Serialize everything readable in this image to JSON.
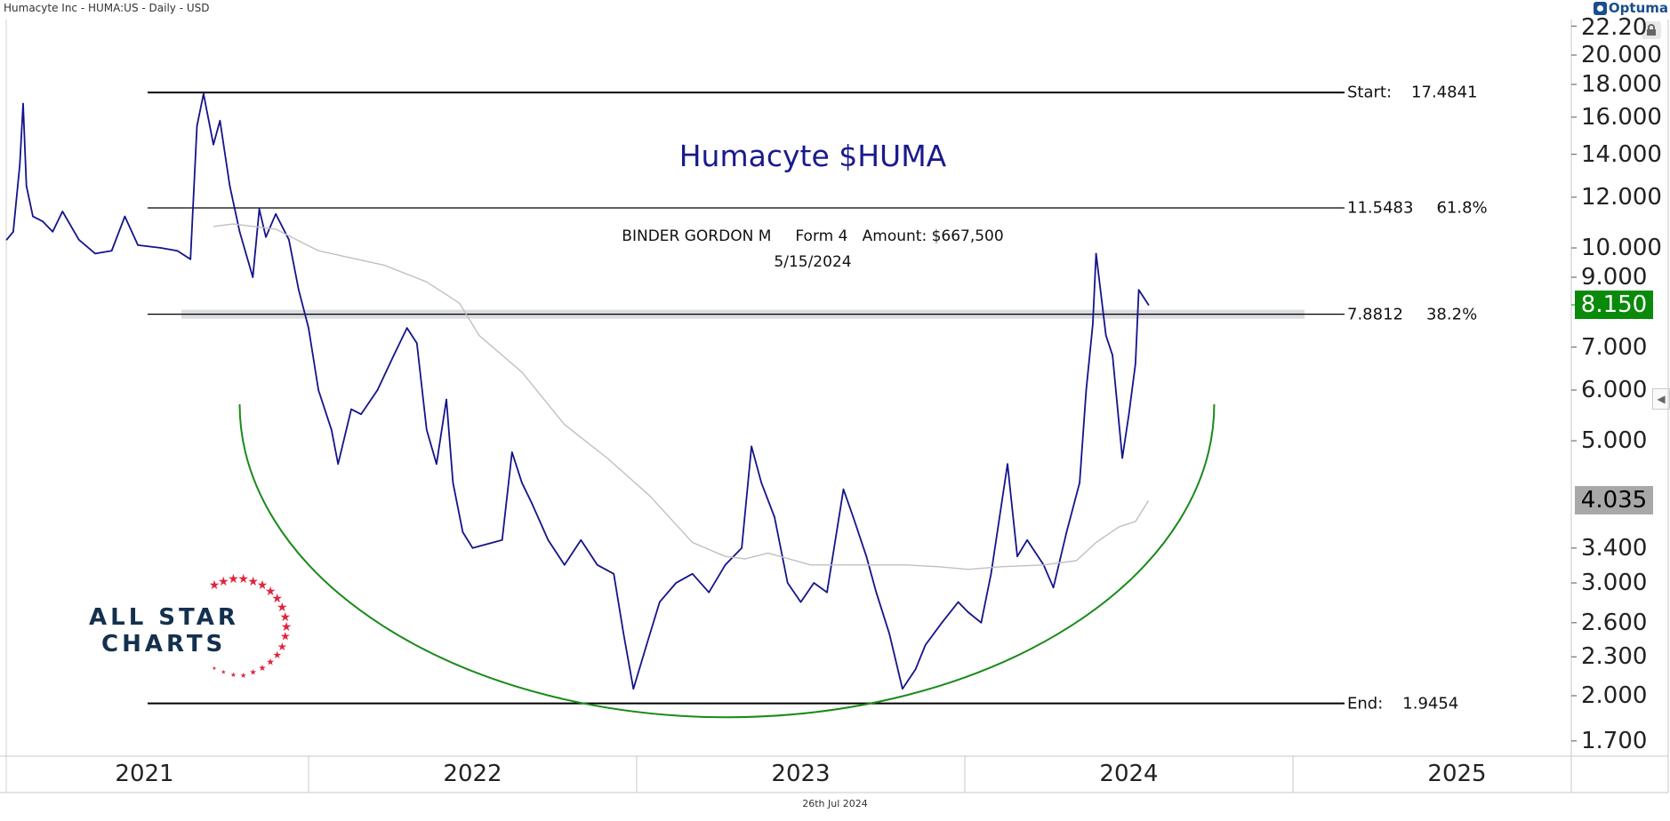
{
  "header": {
    "title": "Humacyte Inc - HUMA:US - Daily - USD",
    "brand": "Optuma",
    "footer_date": "26th Jul 2024"
  },
  "logo": {
    "line1": "ALL STAR",
    "line2": "CHARTS"
  },
  "colors": {
    "price": "#14148a",
    "ma": "#c0c0c0",
    "arc": "#1a8a1a",
    "last_price_bg": "#0a8a0a",
    "ma_price_bg": "#a8a8a8",
    "logo_star": "#e0243c"
  },
  "chart_data": {
    "type": "line",
    "title": "Humacyte $HUMA",
    "annotation": {
      "line1": "BINDER GORDON M     Form 4   Amount: $667,500",
      "line2": "5/15/2024"
    },
    "y_scale": "log",
    "ylim": [
      1.6,
      22.2
    ],
    "xlim": [
      2021.0,
      2025.3
    ],
    "y_ticks": [
      {
        "label": "22.20",
        "value": 22.2
      },
      {
        "label": "20.000",
        "value": 20
      },
      {
        "label": "18.000",
        "value": 18
      },
      {
        "label": "16.000",
        "value": 16
      },
      {
        "label": "14.000",
        "value": 14
      },
      {
        "label": "12.000",
        "value": 12
      },
      {
        "label": "10.000",
        "value": 10
      },
      {
        "label": "9.000",
        "value": 9
      },
      {
        "label": "7.000",
        "value": 7
      },
      {
        "label": "6.000",
        "value": 6
      },
      {
        "label": "5.000",
        "value": 5
      },
      {
        "label": "3.400",
        "value": 3.4
      },
      {
        "label": "3.000",
        "value": 3
      },
      {
        "label": "2.600",
        "value": 2.6
      },
      {
        "label": "2.300",
        "value": 2.3
      },
      {
        "label": "2.000",
        "value": 2
      },
      {
        "label": "1.700",
        "value": 1.7
      }
    ],
    "x_ticks": [
      {
        "label": "2021",
        "value": 2021.5
      },
      {
        "label": "2022",
        "value": 2022.5
      },
      {
        "label": "2023",
        "value": 2023.5
      },
      {
        "label": "2024",
        "value": 2024.5
      },
      {
        "label": "2025",
        "value": 2025.5
      }
    ],
    "x_dividers": [
      2022,
      2023,
      2024,
      2025
    ],
    "last_price": {
      "label": "8.150",
      "value": 8.15
    },
    "ma_price": {
      "label": "4.035",
      "value": 4.035
    },
    "fib_levels": [
      {
        "name": "Start:",
        "value": 17.4841,
        "label": "17.4841"
      },
      {
        "name": "11.5483",
        "value": 11.5483,
        "label": "61.8%"
      },
      {
        "name": "7.8812",
        "value": 7.8812,
        "label": "38.2%"
      },
      {
        "name": "End:",
        "value": 1.9454,
        "label": "1.9454"
      }
    ],
    "resistance_zone": 7.88,
    "series": [
      {
        "name": "HUMA price",
        "x": [
          2021.08,
          2021.1,
          2021.12,
          2021.13,
          2021.14,
          2021.16,
          2021.19,
          2021.22,
          2021.25,
          2021.3,
          2021.35,
          2021.4,
          2021.44,
          2021.48,
          2021.55,
          2021.6,
          2021.64,
          2021.66,
          2021.68,
          2021.71,
          2021.73,
          2021.76,
          2021.79,
          2021.83,
          2021.85,
          2021.87,
          2021.9,
          2021.94,
          2021.97,
          2022.0,
          2022.03,
          2022.07,
          2022.09,
          2022.13,
          2022.16,
          2022.21,
          2022.26,
          2022.3,
          2022.33,
          2022.36,
          2022.39,
          2022.42,
          2022.44,
          2022.47,
          2022.5,
          2022.59,
          2022.62,
          2022.65,
          2022.68,
          2022.73,
          2022.78,
          2022.83,
          2022.88,
          2022.93,
          2022.96,
          2022.99,
          2023.03,
          2023.07,
          2023.12,
          2023.17,
          2023.22,
          2023.27,
          2023.32,
          2023.35,
          2023.38,
          2023.42,
          2023.46,
          2023.5,
          2023.54,
          2023.58,
          2023.63,
          2023.66,
          2023.7,
          2023.73,
          2023.77,
          2023.81,
          2023.85,
          2023.88,
          2023.93,
          2023.98,
          2024.01,
          2024.05,
          2024.08,
          2024.13,
          2024.16,
          2024.19,
          2024.24,
          2024.27,
          2024.31,
          2024.35,
          2024.37,
          2024.39,
          2024.4,
          2024.43,
          2024.45,
          2024.48,
          2024.5,
          2024.52,
          2024.53,
          2024.56
        ],
        "values": [
          10.3,
          10.6,
          13.5,
          16.8,
          12.5,
          11.2,
          11.0,
          10.6,
          11.4,
          10.3,
          9.8,
          9.9,
          11.2,
          10.1,
          10.0,
          9.9,
          9.6,
          15.5,
          17.4,
          14.5,
          15.8,
          12.5,
          10.6,
          9.0,
          11.5,
          10.4,
          11.3,
          10.3,
          8.6,
          7.5,
          6.0,
          5.2,
          4.6,
          5.6,
          5.5,
          6.0,
          6.8,
          7.5,
          7.1,
          5.2,
          4.6,
          5.8,
          4.3,
          3.6,
          3.4,
          3.5,
          4.8,
          4.3,
          4.0,
          3.5,
          3.2,
          3.5,
          3.2,
          3.1,
          2.5,
          2.05,
          2.4,
          2.8,
          3.0,
          3.1,
          2.9,
          3.2,
          3.4,
          4.9,
          4.3,
          3.8,
          3.0,
          2.8,
          3.0,
          2.9,
          4.2,
          3.8,
          3.3,
          2.9,
          2.5,
          2.05,
          2.2,
          2.4,
          2.6,
          2.8,
          2.7,
          2.6,
          3.1,
          4.6,
          3.3,
          3.5,
          3.2,
          2.95,
          3.6,
          4.3,
          6.0,
          7.6,
          9.8,
          7.3,
          6.8,
          4.7,
          5.5,
          6.6,
          8.6,
          8.15
        ]
      },
      {
        "name": "200-day MA",
        "x": [
          2021.71,
          2021.77,
          2021.9,
          2022.03,
          2022.23,
          2022.36,
          2022.46,
          2022.52,
          2022.65,
          2022.78,
          2022.91,
          2023.04,
          2023.17,
          2023.27,
          2023.33,
          2023.4,
          2023.53,
          2023.66,
          2023.82,
          2023.92,
          2024.01,
          2024.11,
          2024.24,
          2024.34,
          2024.4,
          2024.47,
          2024.52,
          2024.56
        ],
        "values": [
          10.8,
          10.9,
          10.7,
          9.9,
          9.4,
          8.85,
          8.2,
          7.3,
          6.4,
          5.3,
          4.7,
          4.1,
          3.47,
          3.3,
          3.27,
          3.34,
          3.2,
          3.2,
          3.2,
          3.18,
          3.15,
          3.18,
          3.2,
          3.25,
          3.47,
          3.67,
          3.74,
          4.035
        ]
      }
    ],
    "arc": {
      "label": "rounding bottom",
      "from_x": 2021.79,
      "to_x": 2024.76,
      "bottom_value": 1.85
    }
  }
}
